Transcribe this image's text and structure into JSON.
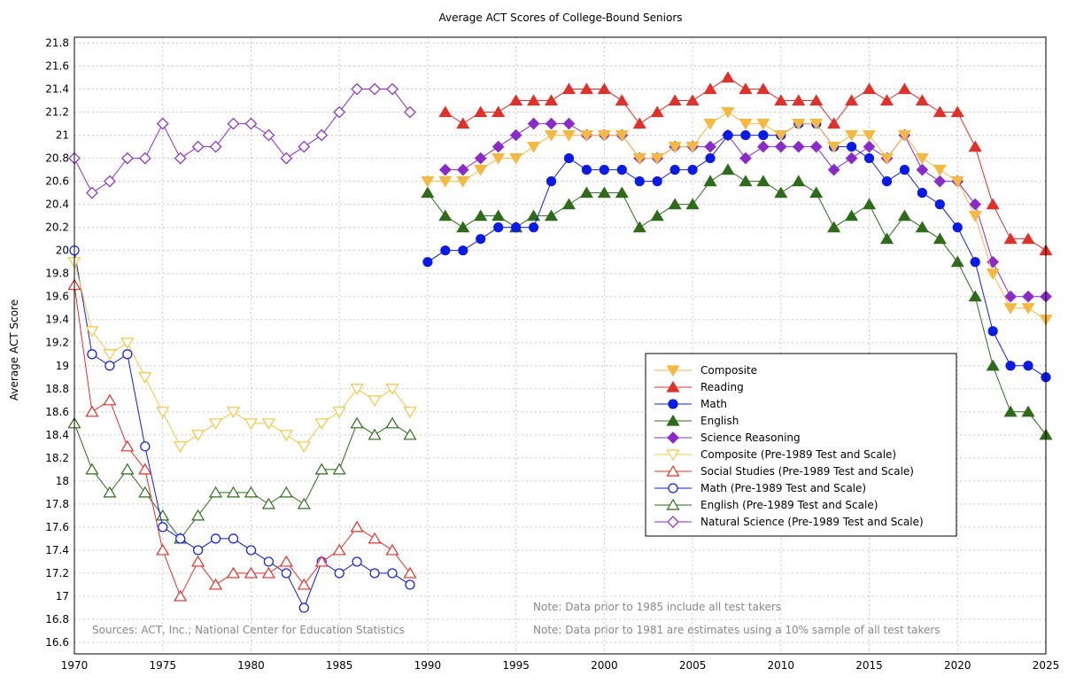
{
  "chart_data": {
    "type": "line",
    "title": "Average ACT Scores of College-Bound Seniors",
    "xlabel": "",
    "ylabel": "Average ACT Score",
    "xlim": [
      1970,
      2025
    ],
    "ylim": [
      16.5,
      21.85
    ],
    "grid": true,
    "legend_position": "bottom-right",
    "x_ticks": [
      1970,
      1975,
      1980,
      1985,
      1990,
      1995,
      2000,
      2005,
      2010,
      2015,
      2020,
      2025
    ],
    "y_ticks": [
      "16.6",
      "16.8",
      "17",
      "17.2",
      "17.4",
      "17.6",
      "17.8",
      "18",
      "18.2",
      "18.4",
      "18.6",
      "18.8",
      "19",
      "19.2",
      "19.4",
      "19.6",
      "19.8",
      "20",
      "20.2",
      "20.4",
      "20.6",
      "20.8",
      "21",
      "21.2",
      "21.4",
      "21.6",
      "21.8"
    ],
    "annotations": [
      "Sources: ACT, Inc.; National Center for Education Statistics",
      "Note: Data prior to 1985 include all test takers",
      "Note: Data prior to 1981 are estimates using a 10% sample of all test takers"
    ],
    "series": [
      {
        "name": "Composite",
        "color": "#f5b942",
        "marker": "tri-down",
        "filled": true,
        "x_start": 1990,
        "values": [
          20.6,
          20.6,
          20.6,
          20.7,
          20.8,
          20.8,
          20.9,
          21.0,
          21.0,
          21.0,
          21.0,
          21.0,
          20.8,
          20.8,
          20.9,
          20.9,
          21.1,
          21.2,
          21.1,
          21.1,
          21.0,
          21.1,
          21.1,
          20.9,
          21.0,
          21.0,
          20.8,
          21.0,
          20.8,
          20.7,
          20.6,
          20.3,
          19.8,
          19.5,
          19.5,
          19.4
        ]
      },
      {
        "name": "Reading",
        "color": "#e0302a",
        "marker": "tri-up",
        "filled": true,
        "x_start": 1991,
        "values": [
          21.2,
          21.1,
          21.2,
          21.2,
          21.3,
          21.3,
          21.3,
          21.4,
          21.4,
          21.4,
          21.3,
          21.1,
          21.2,
          21.3,
          21.3,
          21.4,
          21.5,
          21.4,
          21.4,
          21.3,
          21.3,
          21.3,
          21.1,
          21.3,
          21.4,
          21.3,
          21.4,
          21.3,
          21.2,
          21.2,
          20.9,
          20.4,
          20.1,
          20.1,
          20.0
        ]
      },
      {
        "name": "Math",
        "color": "#0a1be8",
        "marker": "circle",
        "filled": true,
        "x_start": 1990,
        "values": [
          19.9,
          20.0,
          20.0,
          20.1,
          20.2,
          20.2,
          20.2,
          20.6,
          20.8,
          20.7,
          20.7,
          20.7,
          20.6,
          20.6,
          20.7,
          20.7,
          20.8,
          21.0,
          21.0,
          21.0,
          21.0,
          21.1,
          21.1,
          20.9,
          20.9,
          20.8,
          20.6,
          20.7,
          20.5,
          20.4,
          20.2,
          19.9,
          19.3,
          19.0,
          19.0,
          18.9
        ]
      },
      {
        "name": "English",
        "color": "#2e6b1a",
        "marker": "tri-up",
        "filled": true,
        "x_start": 1990,
        "values": [
          20.5,
          20.3,
          20.2,
          20.3,
          20.3,
          20.2,
          20.3,
          20.3,
          20.4,
          20.5,
          20.5,
          20.5,
          20.2,
          20.3,
          20.4,
          20.4,
          20.6,
          20.7,
          20.6,
          20.6,
          20.5,
          20.6,
          20.5,
          20.2,
          20.3,
          20.4,
          20.1,
          20.3,
          20.2,
          20.1,
          19.9,
          19.6,
          19.0,
          18.6,
          18.6,
          18.4
        ]
      },
      {
        "name": "Science Reasoning",
        "color": "#8a2bc9",
        "marker": "diamond",
        "filled": true,
        "x_start": 1991,
        "values": [
          20.7,
          20.7,
          20.8,
          20.9,
          21.0,
          21.1,
          21.1,
          21.1,
          21.0,
          21.0,
          21.0,
          20.8,
          20.8,
          20.9,
          20.9,
          20.9,
          21.0,
          20.8,
          20.9,
          20.9,
          20.9,
          20.9,
          20.7,
          20.8,
          20.9,
          20.8,
          21.0,
          20.7,
          20.6,
          20.6,
          20.4,
          19.9,
          19.6,
          19.6,
          19.6
        ]
      },
      {
        "name": "Composite (Pre-1989 Test and Scale)",
        "color": "#f5c542",
        "marker": "tri-down",
        "filled": false,
        "x_start": 1970,
        "values": [
          19.9,
          19.3,
          19.1,
          19.2,
          18.9,
          18.6,
          18.3,
          18.4,
          18.5,
          18.6,
          18.5,
          18.5,
          18.4,
          18.3,
          18.5,
          18.6,
          18.8,
          18.7,
          18.8,
          18.6
        ]
      },
      {
        "name": "Social Studies (Pre-1989 Test and Scale)",
        "color": "#e0302a",
        "marker": "tri-up",
        "filled": false,
        "x_start": 1970,
        "values": [
          19.7,
          18.6,
          18.7,
          18.3,
          18.1,
          17.4,
          17.0,
          17.3,
          17.1,
          17.2,
          17.2,
          17.2,
          17.3,
          17.1,
          17.3,
          17.4,
          17.6,
          17.5,
          17.4,
          17.2
        ]
      },
      {
        "name": "Math (Pre-1989 Test and Scale)",
        "color": "#0a1be8",
        "marker": "circle",
        "filled": false,
        "x_start": 1970,
        "values": [
          20.0,
          19.1,
          19.0,
          19.1,
          18.3,
          17.6,
          17.5,
          17.4,
          17.5,
          17.5,
          17.4,
          17.3,
          17.2,
          16.9,
          17.3,
          17.2,
          17.3,
          17.2,
          17.2,
          17.1
        ]
      },
      {
        "name": "English (Pre-1989 Test and Scale)",
        "color": "#2e6b1a",
        "marker": "tri-up",
        "filled": false,
        "x_start": 1970,
        "values": [
          18.5,
          18.1,
          17.9,
          18.1,
          17.9,
          17.7,
          17.5,
          17.7,
          17.9,
          17.9,
          17.9,
          17.8,
          17.9,
          17.8,
          18.1,
          18.1,
          18.5,
          18.4,
          18.5,
          18.4
        ]
      },
      {
        "name": "Natural Science (Pre-1989 Test and Scale)",
        "color": "#8a2bc9",
        "marker": "diamond",
        "filled": false,
        "x_start": 1970,
        "values": [
          20.8,
          20.5,
          20.6,
          20.8,
          20.8,
          21.1,
          20.8,
          20.9,
          20.9,
          21.1,
          21.1,
          21.0,
          20.8,
          20.9,
          21.0,
          21.2,
          21.4,
          21.4,
          21.4,
          21.2
        ]
      }
    ]
  }
}
